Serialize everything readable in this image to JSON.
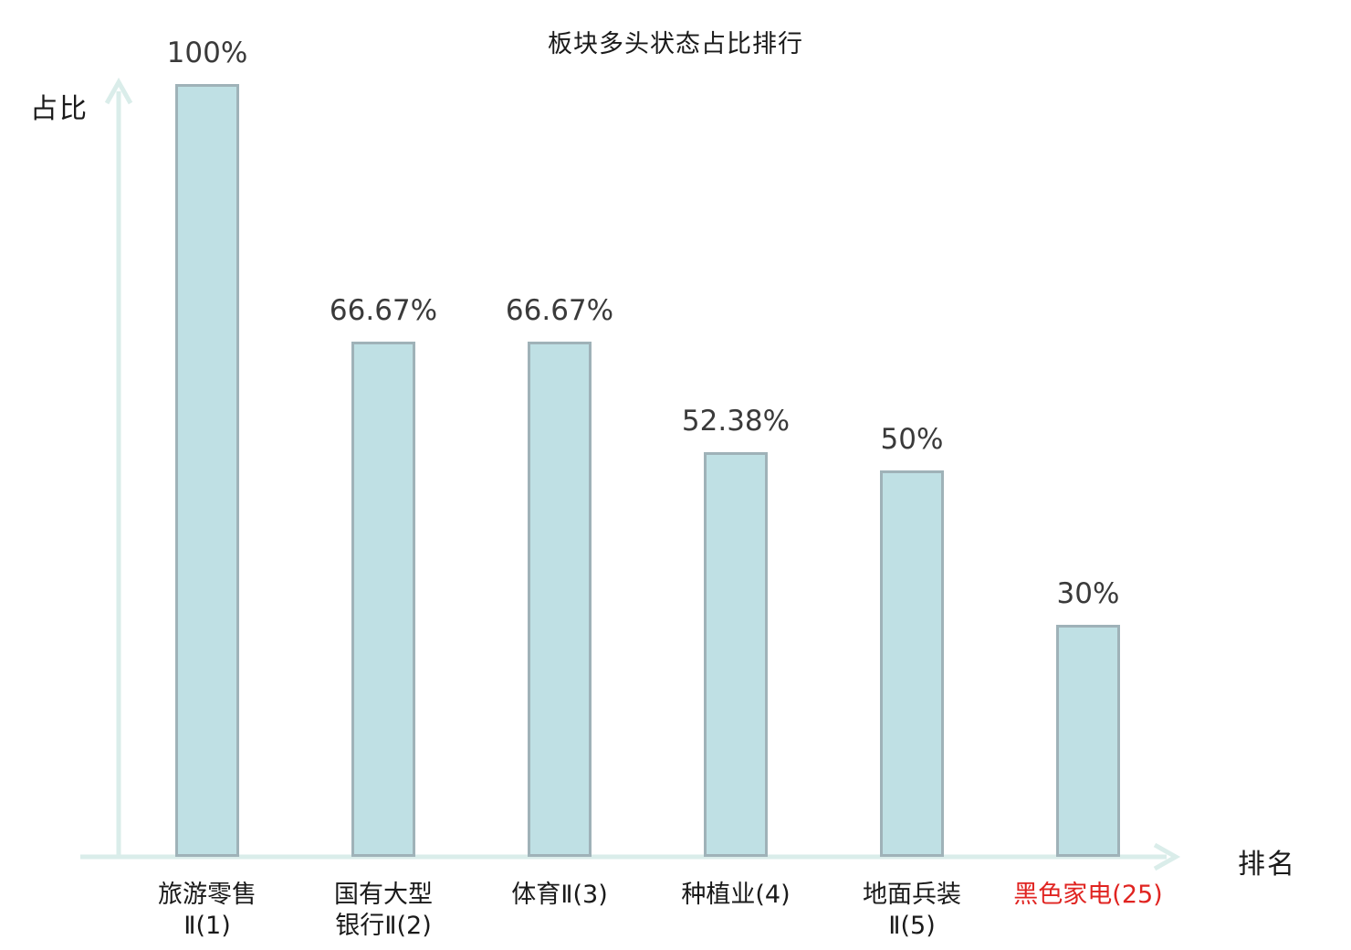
{
  "title": "板块多头状态占比排行",
  "y_axis_label": "占比",
  "x_axis_label": "排名",
  "colors": {
    "bar_fill": "#bfe0e4",
    "bar_border": "#9fb2b8",
    "axis": "#daedea",
    "title_text": "#1a1a1a",
    "value_text": "#3a3a3a",
    "category_text": "#1a1a1a",
    "highlight_text": "#e02421"
  },
  "chart_data": {
    "type": "bar",
    "title": "板块多头状态占比排行",
    "xlabel": "排名",
    "ylabel": "占比",
    "ylim": [
      0,
      100
    ],
    "grid": false,
    "legend": "none",
    "categories": [
      "旅游零售Ⅱ(1)",
      "国有大型银行Ⅱ(2)",
      "体育Ⅱ(3)",
      "种植业(4)",
      "地面兵装Ⅱ(5)",
      "黑色家电(25)"
    ],
    "values": [
      100,
      66.67,
      66.67,
      52.38,
      50,
      30
    ],
    "value_labels": [
      "100%",
      "66.67%",
      "66.67%",
      "52.38%",
      "50%",
      "30%"
    ],
    "category_label_lines": [
      [
        "旅游零售",
        "Ⅱ(1)"
      ],
      [
        "国有大型",
        "银行Ⅱ(2)"
      ],
      [
        "体育Ⅱ(3)"
      ],
      [
        "种植业(4)"
      ],
      [
        "地面兵装",
        "Ⅱ(5)"
      ],
      [
        "黑色家电(25)"
      ]
    ],
    "highlighted_category_index": 5
  }
}
